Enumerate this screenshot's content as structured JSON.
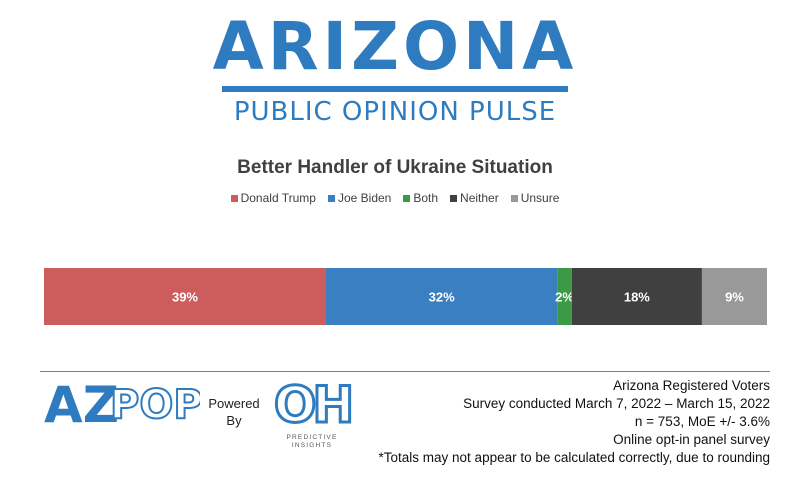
{
  "brand": {
    "title": "Arizona",
    "subtitle": "PUBLIC OPINION PULSE",
    "color": "#2e7bbf"
  },
  "chart_data": {
    "type": "bar",
    "orientation": "horizontal-stacked",
    "title": "Better Handler of Ukraine Situation",
    "categories": [
      ""
    ],
    "series": [
      {
        "name": "Donald Trump",
        "values": [
          39
        ],
        "label": "39%",
        "color": "#cd5c5c"
      },
      {
        "name": "Joe Biden",
        "values": [
          32
        ],
        "label": "32%",
        "color": "#3a7fc1"
      },
      {
        "name": "Both",
        "values": [
          2
        ],
        "label": "2%",
        "color": "#3c9a46"
      },
      {
        "name": "Neither",
        "values": [
          18
        ],
        "label": "18%",
        "color": "#404040"
      },
      {
        "name": "Unsure",
        "values": [
          9
        ],
        "label": "9%",
        "color": "#999999"
      }
    ],
    "xlim": [
      0,
      100
    ],
    "grid": false,
    "legend": "top-center"
  },
  "footer": {
    "azpop": {
      "left": "AZ",
      "right": "POP"
    },
    "powered_by": [
      "Powered",
      "By"
    ],
    "oh": {
      "mark": "OH",
      "line1": "PREDICTIVE",
      "line2": "INSIGHTS"
    },
    "notes": [
      "Arizona Registered Voters",
      "Survey conducted March 7, 2022 – March 15, 2022",
      "n = 753, MoE +/- 3.6%",
      "Online opt-in panel survey",
      "*Totals may not appear to be calculated correctly, due to rounding"
    ]
  }
}
